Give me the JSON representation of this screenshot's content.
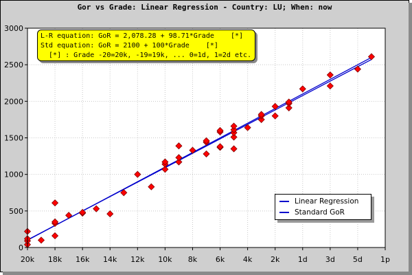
{
  "chart_data": {
    "type": "scatter",
    "title": "Gor vs Grade: Linear Regression - Country: LU; When: now",
    "x_tick_labels": [
      "20k",
      "18k",
      "16k",
      "14k",
      "12k",
      "10k",
      "8k",
      "6k",
      "4k",
      "2k",
      "1d",
      "3d",
      "5d",
      "1p"
    ],
    "x_tick_grades": [
      -20,
      -18,
      -16,
      -14,
      -12,
      -10,
      -8,
      -6,
      -4,
      -2,
      0,
      2,
      4,
      6
    ],
    "xlim": [
      -20,
      6
    ],
    "ylim": [
      0,
      3000
    ],
    "y_ticks": [
      0,
      500,
      1000,
      1500,
      2000,
      2500,
      3000
    ],
    "grid": true,
    "equations": {
      "line1": "L-R equation: GoR = 2,078.28 + 98.71*Grade    [*]",
      "line2": "Std equation: GoR = 2100 + 100*Grade    [*]",
      "line3": "  [*] : Grade -20=20k, -19=19k, ... 0=1d, 1=2d etc."
    },
    "series": [
      {
        "name": "Linear Regression",
        "intercept": 2078.28,
        "slope": 98.71,
        "x_range": [
          -20,
          5
        ],
        "color": "#0000cc"
      },
      {
        "name": "Standard GoR",
        "intercept": 2100,
        "slope": 100,
        "x_range": [
          -20,
          5
        ],
        "color": "#0000cc"
      }
    ],
    "points": [
      [
        -20,
        40
      ],
      [
        -20,
        90
      ],
      [
        -20,
        120
      ],
      [
        -20,
        220
      ],
      [
        -19,
        100
      ],
      [
        -18,
        160
      ],
      [
        -18,
        330
      ],
      [
        -18,
        350
      ],
      [
        -18,
        610
      ],
      [
        -17,
        440
      ],
      [
        -16,
        470
      ],
      [
        -16,
        480
      ],
      [
        -15,
        530
      ],
      [
        -14,
        460
      ],
      [
        -13,
        750
      ],
      [
        -12,
        1000
      ],
      [
        -11,
        830
      ],
      [
        -10,
        1070
      ],
      [
        -10,
        1140
      ],
      [
        -10,
        1170
      ],
      [
        -9,
        1170
      ],
      [
        -9,
        1230
      ],
      [
        -9,
        1390
      ],
      [
        -8,
        1330
      ],
      [
        -7,
        1280
      ],
      [
        -7,
        1440
      ],
      [
        -7,
        1460
      ],
      [
        -6,
        1370
      ],
      [
        -6,
        1380
      ],
      [
        -6,
        1580
      ],
      [
        -6,
        1600
      ],
      [
        -5,
        1350
      ],
      [
        -5,
        1510
      ],
      [
        -5,
        1570
      ],
      [
        -5,
        1610
      ],
      [
        -5,
        1660
      ],
      [
        -4,
        1640
      ],
      [
        -3,
        1750
      ],
      [
        -3,
        1800
      ],
      [
        -3,
        1820
      ],
      [
        -2,
        1800
      ],
      [
        -2,
        1930
      ],
      [
        -1,
        1910
      ],
      [
        -1,
        1970
      ],
      [
        -1,
        1990
      ],
      [
        0,
        2170
      ],
      [
        2,
        2210
      ],
      [
        2,
        2360
      ],
      [
        4,
        2440
      ],
      [
        5,
        2610
      ]
    ],
    "point_color": "#ff0000"
  }
}
